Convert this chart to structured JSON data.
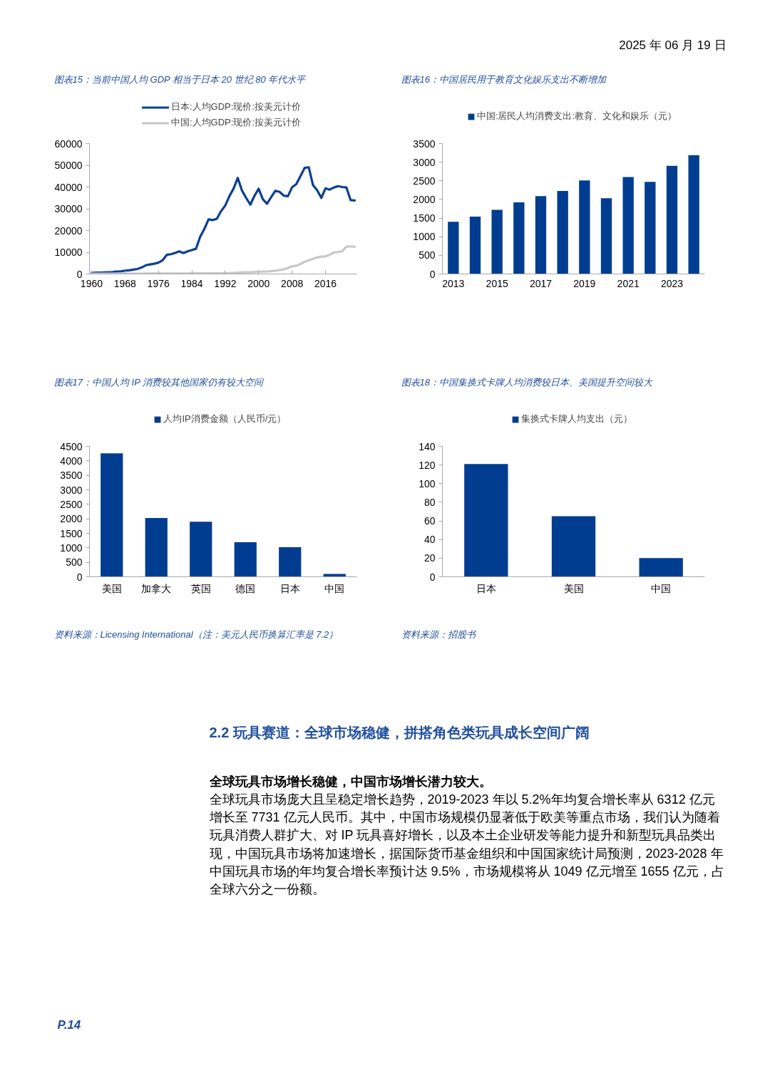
{
  "chart_data": [
    {
      "type": "other",
      "annotations": [
        "2025 年 06 月 19 日"
      ]
    },
    {
      "type": "line",
      "title": "图表15：当前中国人均 GDP 相当于日本 20 世纪 80 年代水平",
      "x": [
        1960,
        1961,
        1962,
        1963,
        1964,
        1965,
        1966,
        1967,
        1968,
        1969,
        1970,
        1971,
        1972,
        1973,
        1974,
        1975,
        1976,
        1977,
        1978,
        1979,
        1980,
        1981,
        1982,
        1983,
        1984,
        1985,
        1986,
        1987,
        1988,
        1989,
        1990,
        1991,
        1992,
        1993,
        1994,
        1995,
        1996,
        1997,
        1998,
        1999,
        2000,
        2001,
        2002,
        2003,
        2004,
        2005,
        2006,
        2007,
        2008,
        2009,
        2010,
        2011,
        2012,
        2013,
        2014,
        2015,
        2016,
        2017,
        2018,
        2019,
        2020,
        2021,
        2022,
        2023
      ],
      "series": [
        {
          "name": "日本:人均GDP:现价:按美元计价",
          "color": "#0b3f94",
          "values": [
            500,
            600,
            600,
            700,
            800,
            900,
            1100,
            1200,
            1500,
            1700,
            2000,
            2300,
            3000,
            4000,
            4400,
            4700,
            5200,
            6300,
            8800,
            9100,
            9700,
            10400,
            9600,
            10400,
            11000,
            11600,
            17100,
            20700,
            25100,
            24800,
            25400,
            28900,
            31500,
            35800,
            39300,
            44200,
            38400,
            35000,
            31900,
            36000,
            39200,
            34400,
            32300,
            35400,
            38300,
            37800,
            36000,
            35800,
            39900,
            41300,
            45000,
            48800,
            49100,
            40900,
            38500,
            35000,
            39400,
            38800,
            39800,
            40400,
            40000,
            39800,
            34000,
            33800
          ]
        },
        {
          "name": "中国:人均GDP:现价:按美元计价",
          "color": "#c8c8c8",
          "values": [
            100,
            100,
            100,
            100,
            100,
            100,
            100,
            100,
            100,
            100,
            100,
            100,
            100,
            200,
            200,
            200,
            200,
            200,
            200,
            200,
            200,
            200,
            200,
            200,
            300,
            300,
            300,
            300,
            300,
            300,
            300,
            300,
            400,
            400,
            500,
            600,
            700,
            800,
            800,
            900,
            1000,
            1100,
            1100,
            1300,
            1500,
            1800,
            2100,
            2700,
            3500,
            3800,
            4600,
            5600,
            6300,
            7000,
            7600,
            8000,
            8100,
            8800,
            9900,
            10100,
            10400,
            12600,
            12700,
            12600
          ]
        }
      ],
      "xlim": [
        1959.5,
        2023.5
      ],
      "xticks": [
        1960,
        1968,
        1976,
        1984,
        1992,
        2000,
        2008,
        2016
      ],
      "ylim": [
        0,
        60000
      ],
      "yticks": [
        0,
        10000,
        20000,
        30000,
        40000,
        50000,
        60000
      ],
      "legend": "top"
    },
    {
      "type": "bar",
      "title": "图表16：中国居民用于教育文化娱乐支出不断增加",
      "categories": [
        "2013",
        null,
        "2015",
        null,
        "2017",
        null,
        "2019",
        null,
        "2021",
        null,
        "2023",
        null
      ],
      "series": [
        {
          "name": "中国:居民人均消费支出:教育、文化和娱乐（元）",
          "color": "#003d91",
          "values": [
            1400,
            1540,
            1720,
            1920,
            2090,
            2230,
            2510,
            2030,
            2600,
            2470,
            2900,
            3190
          ]
        }
      ],
      "ylim": [
        0,
        3500
      ],
      "yticks": [
        0,
        500,
        1000,
        1500,
        2000,
        2500,
        3000,
        3500
      ],
      "legend": "top"
    },
    {
      "type": "bar",
      "title": "图表17：中国人均 IP 消费较其他国家仍有较大空间",
      "categories": [
        "美国",
        "加拿大",
        "英国",
        "德国",
        "日本",
        "中国"
      ],
      "series": [
        {
          "name": "人均IP消费金额（人民币/元）",
          "color": "#003d91",
          "values": [
            4260,
            2030,
            1900,
            1190,
            1020,
            100
          ]
        }
      ],
      "ylim": [
        0,
        4500
      ],
      "yticks": [
        0,
        500,
        1000,
        1500,
        2000,
        2500,
        3000,
        3500,
        4000,
        4500
      ],
      "legend": "top",
      "annotations": [
        "资料来源：Licensing International（注：美元人民币换算汇率是 7.2）"
      ]
    },
    {
      "type": "bar",
      "title": "图表18：中国集换式卡牌人均消费较日本、美国提升空间较大",
      "categories": [
        "日本",
        "美国",
        "中国"
      ],
      "series": [
        {
          "name": "集换式卡牌人均支出（元）",
          "color": "#003d91",
          "values": [
            121,
            65,
            20
          ]
        }
      ],
      "ylim": [
        0,
        140
      ],
      "yticks": [
        0,
        20,
        40,
        60,
        80,
        100,
        120,
        140
      ],
      "legend": "top",
      "annotations": [
        "资料来源：招股书"
      ]
    },
    {
      "type": "other",
      "title": "2.2 玩具赛道：全球市场稳健，拼搭角色类玩具成长空间广阔",
      "annotations": [
        "全球玩具市场增长稳健，中国市场增长潜力较大。",
        "全球玩具市场庞大且呈稳定增长趋势，2019-2023 年以 5.2%年均复合增长率从 6312 亿元增长至 7731 亿元人民币。其中，中国市场规模仍显著低于欧美等重点市场，我们认为随着玩具消费人群扩大、对 IP 玩具喜好增长，以及本土企业研发等能力提升和新型玩具品类出现，中国玩具市场将加速增长，据国际货币基金组织和中国国家统计局预测，2023-2028 年中国玩具市场的年均复合增长率预计达 9.5%，市场规模将从 1049 亿元增至 1655 亿元，占全球六分之一份额。"
      ]
    },
    {
      "type": "other",
      "annotations": [
        "P.14"
      ]
    }
  ]
}
